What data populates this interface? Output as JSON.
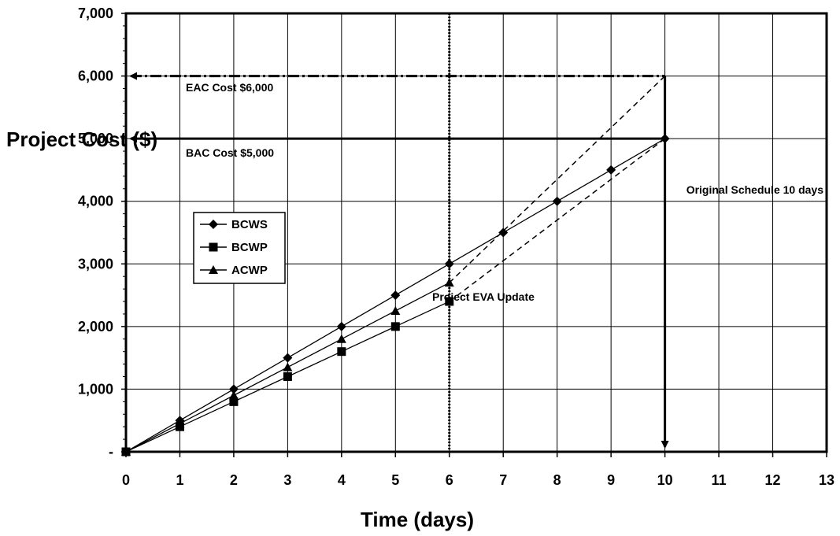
{
  "chart_data": {
    "type": "line",
    "xlabel": "Time (days)",
    "ylabel": "Project Cost ($)",
    "xlim": [
      0,
      13
    ],
    "ylim": [
      0,
      7000
    ],
    "x_ticks": [
      "0",
      "1",
      "2",
      "3",
      "4",
      "5",
      "6",
      "7",
      "8",
      "9",
      "10",
      "11",
      "12",
      "13"
    ],
    "y_ticks": [
      "-",
      "1,000",
      "2,000",
      "3,000",
      "4,000",
      "5,000",
      "6,000",
      "7,000"
    ],
    "grid": true,
    "legend_position": "middle-left",
    "series": [
      {
        "name": "BCWS",
        "marker": "diamond",
        "x": [
          0,
          1,
          2,
          3,
          4,
          5,
          6,
          7,
          8,
          9,
          10
        ],
        "y": [
          0,
          500,
          1000,
          1500,
          2000,
          2500,
          3000,
          3500,
          4000,
          4500,
          5000
        ]
      },
      {
        "name": "BCWP",
        "marker": "square",
        "x": [
          0,
          1,
          2,
          3,
          4,
          5,
          6
        ],
        "y": [
          0,
          400,
          800,
          1200,
          1600,
          2000,
          2400
        ]
      },
      {
        "name": "ACWP",
        "marker": "triangle",
        "x": [
          0,
          1,
          2,
          3,
          4,
          5,
          6
        ],
        "y": [
          0,
          450,
          900,
          1350,
          1800,
          2250,
          2700
        ]
      }
    ],
    "projections": [
      {
        "from": [
          6,
          2700
        ],
        "to": [
          10,
          6000
        ],
        "style": "dashed"
      },
      {
        "from": [
          6,
          2400
        ],
        "to": [
          10,
          5000
        ],
        "style": "dashed"
      }
    ],
    "reference_lines": [
      {
        "type": "horizontal",
        "y": 6000,
        "x_from": 0,
        "x_to": 10,
        "style": "dash-dot",
        "arrow": "start",
        "label": "EAC Cost $6,000"
      },
      {
        "type": "horizontal",
        "y": 5000,
        "x_from": 0,
        "x_to": 10,
        "style": "solid",
        "arrow": "start",
        "label": "BAC Cost $5,000"
      },
      {
        "type": "vertical",
        "x": 10,
        "y_from": 6000,
        "y_to": 0,
        "style": "solid",
        "arrow": "end",
        "label": "Original Schedule 10 days"
      },
      {
        "type": "vertical",
        "x": 6,
        "y_from": 7000,
        "y_to": 0,
        "style": "dotted",
        "label": "Project EVA Update"
      }
    ]
  }
}
